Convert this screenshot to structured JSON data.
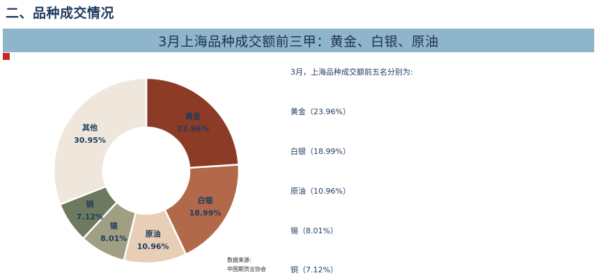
{
  "header": {
    "section_title": "二、品种成交情况",
    "banner": "3月上海品种成交额前三甲：黄金、白银、原油",
    "corner_mark": "RM"
  },
  "chart_data": {
    "type": "pie",
    "donut": true,
    "categories": [
      "黄金",
      "白银",
      "原油",
      "锡",
      "铜",
      "其他"
    ],
    "values": [
      23.96,
      18.99,
      10.96,
      8.01,
      7.12,
      30.95
    ],
    "value_labels": [
      "23.96%",
      "18.99%",
      "10.96%",
      "8.01%",
      "7.12%",
      "30.95%"
    ],
    "colors": [
      "#8c3b26",
      "#b2694a",
      "#e8cdb7",
      "#a19f82",
      "#6e7a5f",
      "#efe7dc"
    ],
    "label_colors": [
      "#1e3a5f",
      "#1e3a5f",
      "#1e3a5f",
      "#1e3a5f",
      "#1e3a5f",
      "#1e3a5f"
    ],
    "start_angle_deg": 0,
    "direction": "clockwise"
  },
  "source": {
    "line1": "数据来源:",
    "line2": "中国期货业协会"
  },
  "summary": {
    "intro": "3月，上海品种成交额前五名分别为:",
    "items": [
      "黄金（23.96%）",
      "白银（18.99%）",
      "原油（10.96%）",
      "锡（8.01%）",
      "铜（7.12%）"
    ]
  }
}
